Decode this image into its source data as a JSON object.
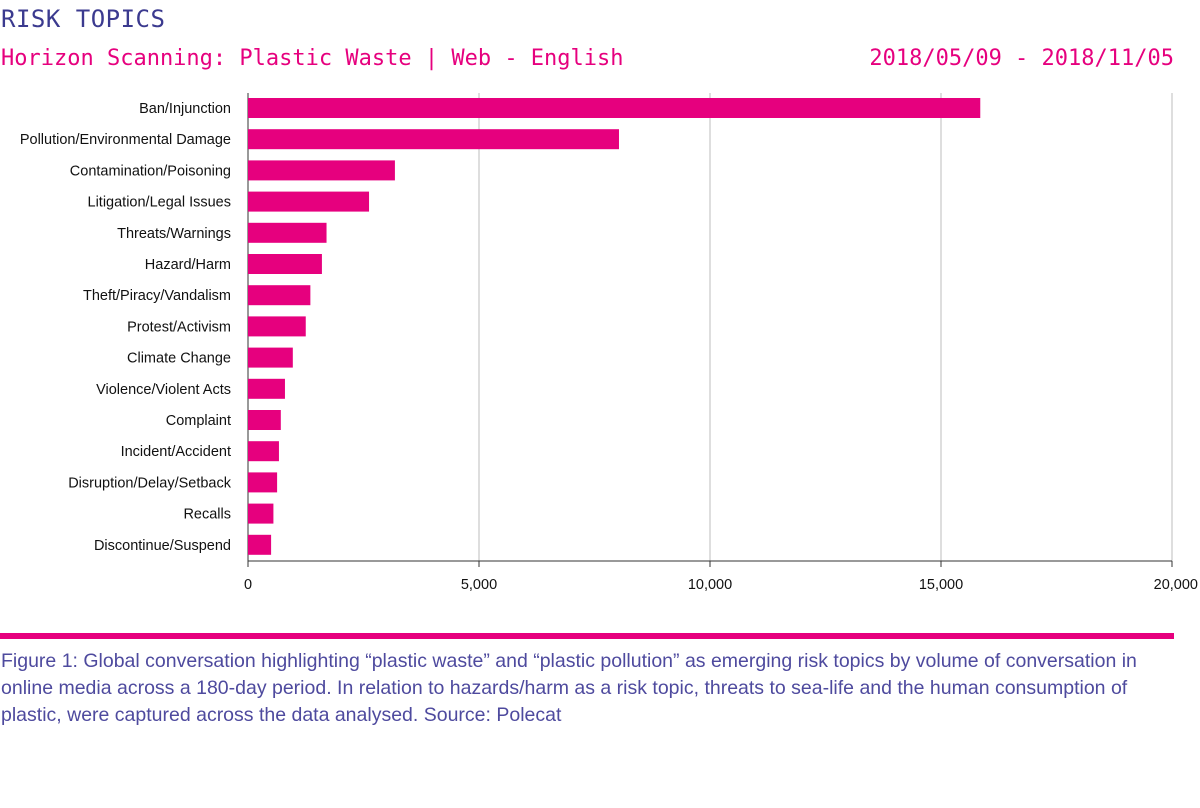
{
  "header": {
    "title": "RISK TOPICS",
    "subtitle": "Horizon Scanning: Plastic Waste | Web - English",
    "date_range": "2018/05/09 - 2018/11/05"
  },
  "caption": "Figure 1: Global conversation highlighting “plastic waste” and “plastic pollution” as emerging risk topics by volume of conversation in online media across a 180-day period. In relation to hazards/harm as a risk topic, threats to sea-life and the human consumption of plastic, were captured across the data analysed. Source: Polecat",
  "colors": {
    "bar": "#e6007e",
    "grid": "#c8c8c8",
    "axis": "#333333",
    "title": "#3b3a8f",
    "caption": "#4e4a9e"
  },
  "chart_data": {
    "type": "bar",
    "orientation": "horizontal",
    "categories": [
      "Ban/Injunction",
      "Pollution/Environmental Damage",
      "Contamination/Poisoning",
      "Litigation/Legal Issues",
      "Threats/Warnings",
      "Hazard/Harm",
      "Theft/Piracy/Vandalism",
      "Protest/Activism",
      "Climate Change",
      "Violence/Violent Acts",
      "Complaint",
      "Incident/Accident",
      "Disruption/Delay/Setback",
      "Recalls",
      "Discontinue/Suspend"
    ],
    "values": [
      15850,
      8030,
      3180,
      2620,
      1700,
      1600,
      1350,
      1250,
      970,
      800,
      710,
      670,
      630,
      550,
      500
    ],
    "xlim": [
      0,
      20000
    ],
    "xticks": [
      0,
      5000,
      10000,
      15000,
      20000
    ],
    "xtick_labels": [
      "0",
      "5,000",
      "10,000",
      "15,000",
      "20,000"
    ],
    "grid": true,
    "legend": "none"
  }
}
